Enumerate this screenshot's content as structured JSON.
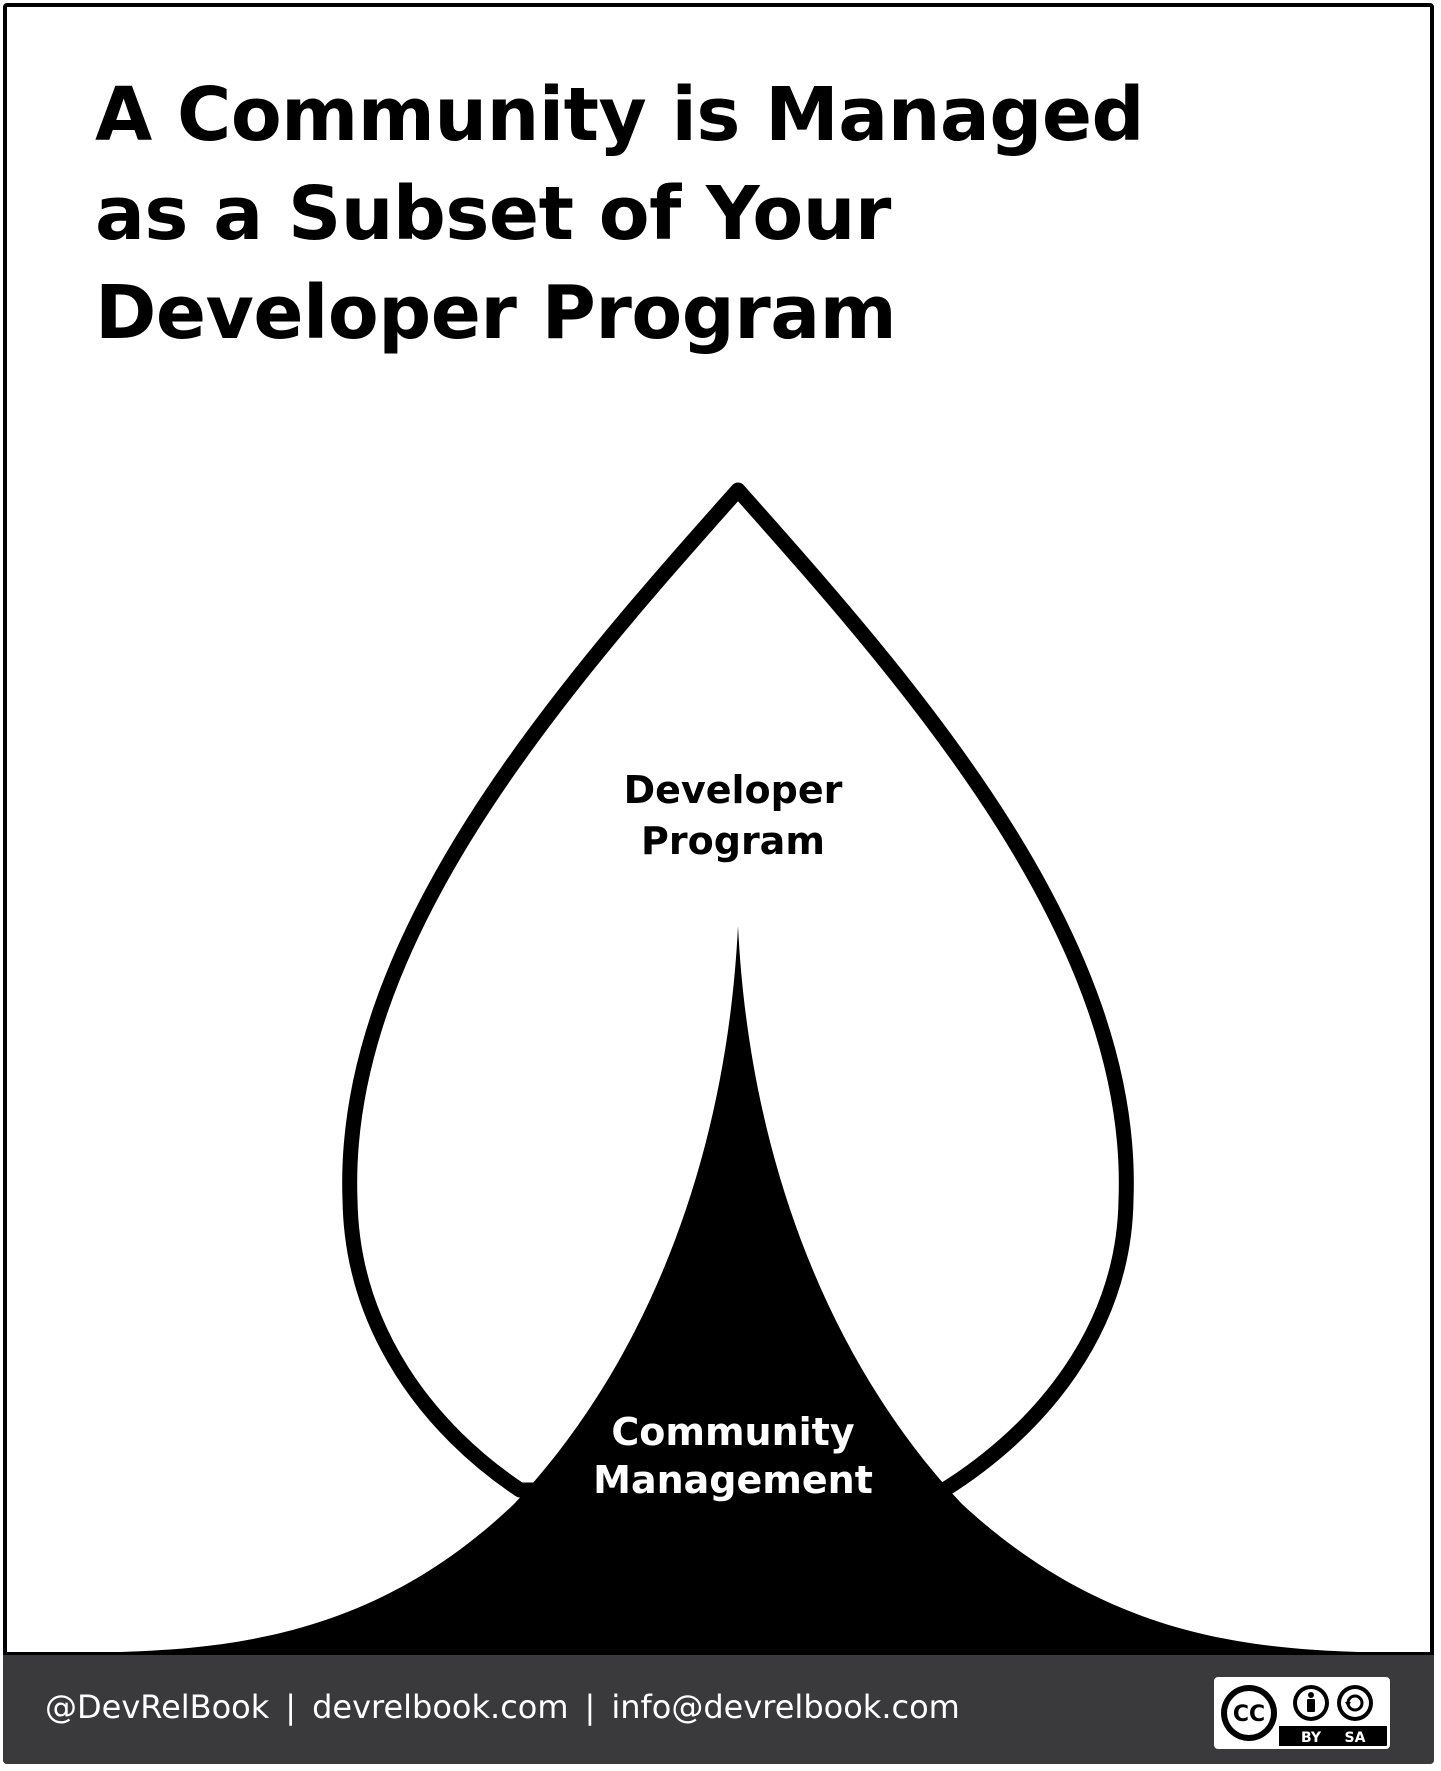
{
  "title": {
    "line1": "A Community is Managed",
    "line2": "as a Subset of Your",
    "line3": "Developer Program"
  },
  "diagram": {
    "outer_label": {
      "line1": "Developer",
      "line2": "Program"
    },
    "inner_label": {
      "line1": "Community",
      "line2": "Management"
    }
  },
  "footer": {
    "handle": "@DevRelBook",
    "separator": "|",
    "website": "devrelbook.com",
    "email": "info@devrelbook.com",
    "license": {
      "icon": "creative-commons-by-sa-icon",
      "cc_text": "CC",
      "by_text": "BY",
      "sa_text": "SA"
    }
  },
  "colors": {
    "ink": "#000000",
    "background": "#ffffff",
    "footer_bg": "#3a3a3c",
    "footer_text": "#ffffff"
  }
}
